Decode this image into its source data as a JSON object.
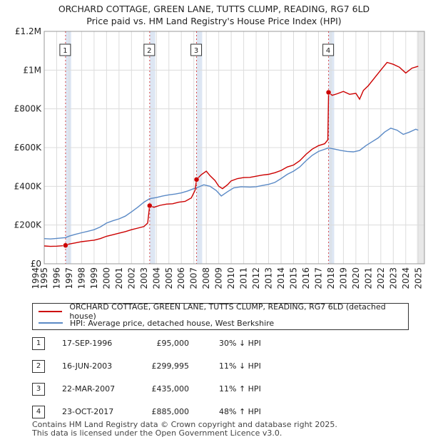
{
  "title": {
    "line1": "ORCHARD COTTAGE, GREEN LANE, TUTTS CLUMP, READING, RG7 6LD",
    "line2": "Price paid vs. HM Land Registry's House Price Index (HPI)"
  },
  "colors": {
    "property": "#cc0000",
    "hpi": "#5b8ac6",
    "shade": "#dde6f3"
  },
  "legend": {
    "property_label": "ORCHARD COTTAGE, GREEN LANE, TUTTS CLUMP, READING, RG7 6LD (detached house)",
    "hpi_label": "HPI: Average price, detached house, West Berkshire"
  },
  "sales": [
    {
      "num": "1",
      "date": "17-SEP-1996",
      "price": "£95,000",
      "hpi": "30% ↓ HPI"
    },
    {
      "num": "2",
      "date": "16-JUN-2003",
      "price": "£299,995",
      "hpi": "11% ↓ HPI"
    },
    {
      "num": "3",
      "date": "22-MAR-2007",
      "price": "£435,000",
      "hpi": "11% ↑ HPI"
    },
    {
      "num": "4",
      "date": "23-OCT-2017",
      "price": "£885,000",
      "hpi": "48% ↑ HPI"
    }
  ],
  "footer": {
    "line1": "Contains HM Land Registry data © Crown copyright and database right 2025.",
    "line2": "This data is licensed under the Open Government Licence v3.0."
  },
  "chart_data": {
    "type": "line",
    "title": "ORCHARD COTTAGE, GREEN LANE, TUTTS CLUMP, READING, RG7 6LD",
    "subtitle": "Price paid vs. HM Land Registry's House Price Index (HPI)",
    "xlim": [
      1995,
      2025
    ],
    "ylim": [
      0,
      1200000
    ],
    "x_ticks": [
      1994,
      1995,
      1996,
      1997,
      1998,
      1999,
      2000,
      2001,
      2002,
      2003,
      2004,
      2005,
      2006,
      2007,
      2008,
      2009,
      2010,
      2011,
      2012,
      2013,
      2014,
      2015,
      2016,
      2017,
      2018,
      2019,
      2020,
      2021,
      2022,
      2023,
      2024,
      2025
    ],
    "y_ticks": [
      {
        "value": 0,
        "label": "£0"
      },
      {
        "value": 200000,
        "label": "£200K"
      },
      {
        "value": 400000,
        "label": "£400K"
      },
      {
        "value": 600000,
        "label": "£600K"
      },
      {
        "value": 800000,
        "label": "£800K"
      },
      {
        "value": 1000000,
        "label": "£1M"
      },
      {
        "value": 1200000,
        "label": "£1.2M"
      }
    ],
    "grid": true,
    "legend_position": "below",
    "sale_markers": [
      {
        "label": "1",
        "x": 1996.71,
        "y": 95000
      },
      {
        "label": "2",
        "x": 2003.46,
        "y": 299995
      },
      {
        "label": "3",
        "x": 2007.22,
        "y": 435000
      },
      {
        "label": "4",
        "x": 2017.81,
        "y": 885000
      }
    ],
    "series": [
      {
        "name": "ORCHARD COTTAGE, GREEN LANE, TUTTS CLUMP, READING, RG7 6LD (detached house)",
        "color": "#cc0000",
        "points": [
          [
            1995.0,
            92000
          ],
          [
            1995.5,
            90000
          ],
          [
            1996.0,
            91000
          ],
          [
            1996.5,
            93000
          ],
          [
            1996.71,
            95000
          ],
          [
            1997.0,
            102000
          ],
          [
            1997.5,
            108000
          ],
          [
            1998.0,
            114000
          ],
          [
            1998.5,
            118000
          ],
          [
            1999.0,
            122000
          ],
          [
            1999.5,
            130000
          ],
          [
            2000.0,
            142000
          ],
          [
            2000.5,
            150000
          ],
          [
            2001.0,
            158000
          ],
          [
            2001.5,
            166000
          ],
          [
            2002.0,
            176000
          ],
          [
            2002.5,
            184000
          ],
          [
            2003.0,
            192000
          ],
          [
            2003.3,
            210000
          ],
          [
            2003.46,
            299995
          ],
          [
            2003.8,
            292000
          ],
          [
            2004.3,
            302000
          ],
          [
            2004.8,
            308000
          ],
          [
            2005.3,
            310000
          ],
          [
            2005.8,
            318000
          ],
          [
            2006.3,
            322000
          ],
          [
            2006.8,
            340000
          ],
          [
            2007.1,
            380000
          ],
          [
            2007.22,
            435000
          ],
          [
            2007.6,
            460000
          ],
          [
            2008.0,
            478000
          ],
          [
            2008.3,
            455000
          ],
          [
            2008.7,
            430000
          ],
          [
            2009.0,
            400000
          ],
          [
            2009.3,
            388000
          ],
          [
            2009.7,
            408000
          ],
          [
            2010.0,
            428000
          ],
          [
            2010.5,
            440000
          ],
          [
            2011.0,
            445000
          ],
          [
            2011.5,
            446000
          ],
          [
            2012.0,
            452000
          ],
          [
            2012.5,
            458000
          ],
          [
            2013.0,
            462000
          ],
          [
            2013.5,
            470000
          ],
          [
            2014.0,
            482000
          ],
          [
            2014.5,
            500000
          ],
          [
            2015.0,
            510000
          ],
          [
            2015.5,
            532000
          ],
          [
            2016.0,
            565000
          ],
          [
            2016.5,
            592000
          ],
          [
            2017.0,
            610000
          ],
          [
            2017.5,
            620000
          ],
          [
            2017.75,
            640000
          ],
          [
            2017.81,
            885000
          ],
          [
            2018.1,
            870000
          ],
          [
            2018.5,
            878000
          ],
          [
            2019.0,
            890000
          ],
          [
            2019.5,
            875000
          ],
          [
            2020.0,
            880000
          ],
          [
            2020.3,
            850000
          ],
          [
            2020.6,
            895000
          ],
          [
            2021.0,
            920000
          ],
          [
            2021.5,
            960000
          ],
          [
            2022.0,
            1000000
          ],
          [
            2022.5,
            1040000
          ],
          [
            2023.0,
            1030000
          ],
          [
            2023.5,
            1015000
          ],
          [
            2024.0,
            985000
          ],
          [
            2024.5,
            1010000
          ],
          [
            2025.0,
            1020000
          ]
        ]
      },
      {
        "name": "HPI: Average price, detached house, West Berkshire",
        "color": "#5b8ac6",
        "points": [
          [
            1995.0,
            130000
          ],
          [
            1995.5,
            128000
          ],
          [
            1996.0,
            131000
          ],
          [
            1996.71,
            135000
          ],
          [
            1997.0,
            143000
          ],
          [
            1997.5,
            152000
          ],
          [
            1998.0,
            160000
          ],
          [
            1998.5,
            168000
          ],
          [
            1999.0,
            176000
          ],
          [
            1999.5,
            190000
          ],
          [
            2000.0,
            210000
          ],
          [
            2000.5,
            222000
          ],
          [
            2001.0,
            232000
          ],
          [
            2001.5,
            246000
          ],
          [
            2002.0,
            268000
          ],
          [
            2002.5,
            292000
          ],
          [
            2003.0,
            318000
          ],
          [
            2003.46,
            336000
          ],
          [
            2004.0,
            342000
          ],
          [
            2004.5,
            350000
          ],
          [
            2005.0,
            356000
          ],
          [
            2005.5,
            360000
          ],
          [
            2006.0,
            366000
          ],
          [
            2006.5,
            376000
          ],
          [
            2007.0,
            388000
          ],
          [
            2007.22,
            392000
          ],
          [
            2007.8,
            408000
          ],
          [
            2008.3,
            400000
          ],
          [
            2008.8,
            378000
          ],
          [
            2009.2,
            350000
          ],
          [
            2009.7,
            372000
          ],
          [
            2010.2,
            392000
          ],
          [
            2010.8,
            398000
          ],
          [
            2011.5,
            396000
          ],
          [
            2012.0,
            398000
          ],
          [
            2012.5,
            404000
          ],
          [
            2013.0,
            410000
          ],
          [
            2013.5,
            420000
          ],
          [
            2014.0,
            440000
          ],
          [
            2014.5,
            462000
          ],
          [
            2015.0,
            478000
          ],
          [
            2015.5,
            500000
          ],
          [
            2016.0,
            532000
          ],
          [
            2016.5,
            560000
          ],
          [
            2017.0,
            580000
          ],
          [
            2017.81,
            598000
          ],
          [
            2018.3,
            592000
          ],
          [
            2018.8,
            585000
          ],
          [
            2019.3,
            580000
          ],
          [
            2019.8,
            578000
          ],
          [
            2020.3,
            585000
          ],
          [
            2020.8,
            610000
          ],
          [
            2021.3,
            630000
          ],
          [
            2021.8,
            650000
          ],
          [
            2022.3,
            680000
          ],
          [
            2022.8,
            700000
          ],
          [
            2023.3,
            690000
          ],
          [
            2023.8,
            668000
          ],
          [
            2024.3,
            680000
          ],
          [
            2024.8,
            695000
          ],
          [
            2025.0,
            690000
          ]
        ]
      }
    ]
  }
}
